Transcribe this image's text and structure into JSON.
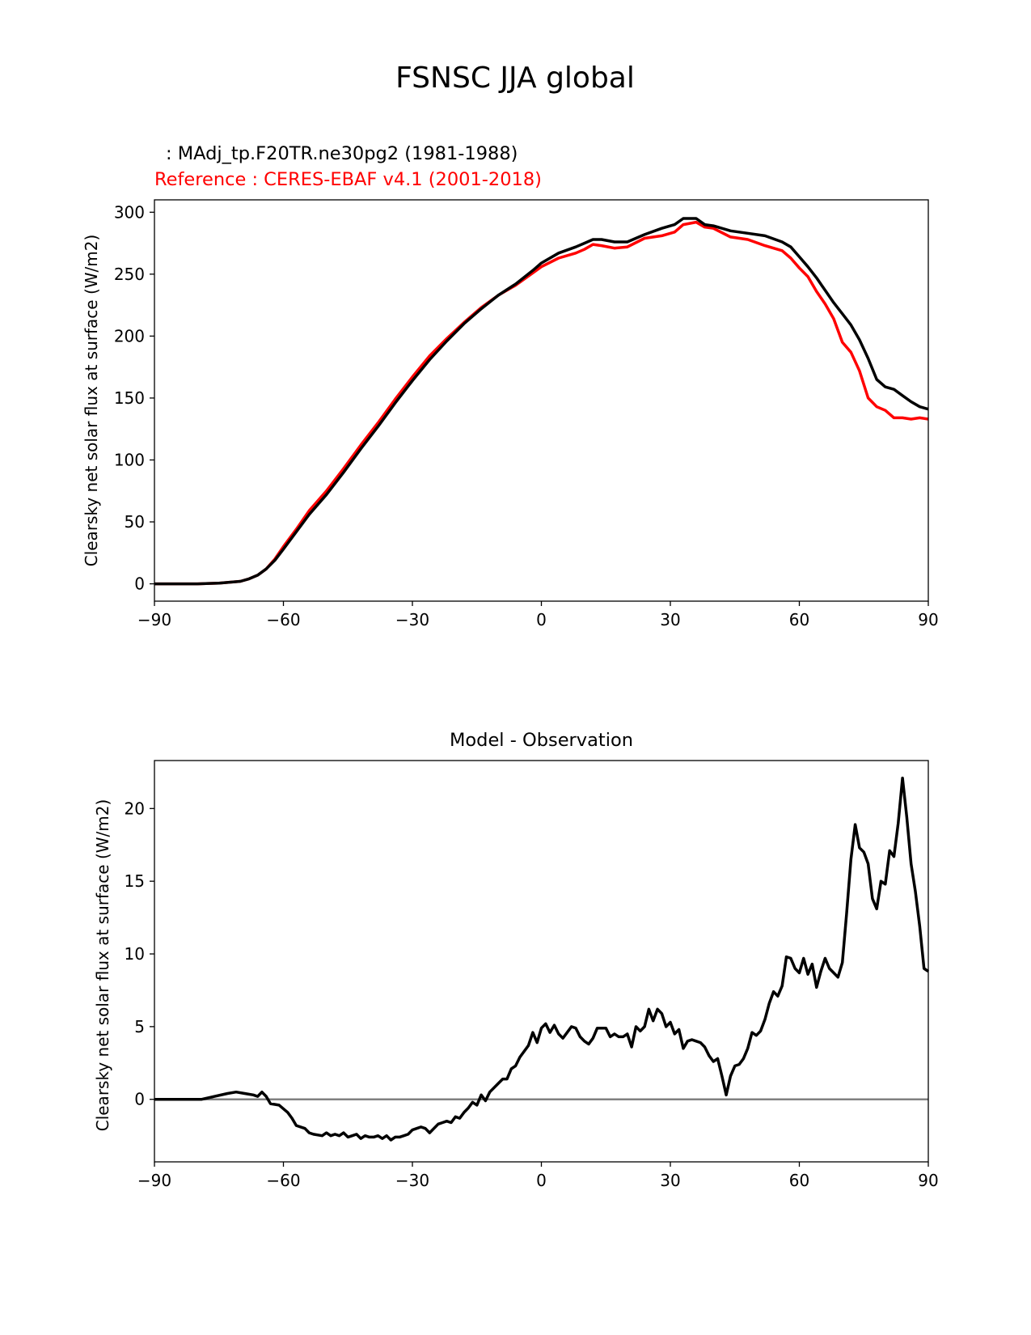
{
  "suptitle": "FSNSC JJA global",
  "chart_data": [
    {
      "type": "line",
      "title_test": ": MAdj_tp.F20TR.ne30pg2 (1981-1988)",
      "title_ref": "Reference : CERES-EBAF v4.1 (2001-2018)",
      "xlabel": "",
      "ylabel": "Clearsky net solar flux at surface (W/m2)",
      "xlim": [
        -90,
        90
      ],
      "ylim": [
        -14,
        310
      ],
      "xticks": [
        -90,
        -60,
        -30,
        0,
        30,
        60,
        90
      ],
      "xtick_labels": [
        "−90",
        "−60",
        "−30",
        "0",
        "30",
        "60",
        "90"
      ],
      "yticks": [
        0,
        50,
        100,
        150,
        200,
        250,
        300
      ],
      "ytick_labels": [
        "0",
        "50",
        "100",
        "150",
        "200",
        "250",
        "300"
      ],
      "grid": false,
      "colors": {
        "test": "#000000",
        "reference": "#ff0000"
      },
      "x": [
        -90,
        -85,
        -80,
        -75,
        -70,
        -68,
        -66,
        -64,
        -62,
        -60,
        -57,
        -54,
        -50,
        -46,
        -42,
        -38,
        -34,
        -30,
        -26,
        -22,
        -18,
        -14,
        -10,
        -6,
        -2,
        0,
        4,
        8,
        10,
        12,
        14,
        17,
        20,
        24,
        28,
        31,
        33,
        36,
        38,
        40,
        44,
        48,
        52,
        56,
        58,
        60,
        62,
        64,
        66,
        68,
        70,
        72,
        74,
        76,
        78,
        80,
        82,
        84,
        86,
        88,
        90
      ],
      "series": [
        {
          "key": "test",
          "values": [
            0,
            0,
            0,
            0.5,
            2,
            4,
            7,
            12,
            19,
            28,
            42,
            56,
            72,
            90,
            109,
            127,
            146,
            164,
            181,
            196,
            210,
            222,
            233,
            242,
            253,
            259,
            267,
            272,
            275,
            278,
            278,
            276,
            276,
            282,
            287,
            290,
            295,
            295,
            290,
            289,
            285,
            283,
            281,
            276,
            272,
            264,
            256,
            247,
            237,
            227,
            218,
            209,
            197,
            182,
            165,
            159,
            157,
            152,
            147,
            143,
            141
          ]
        },
        {
          "key": "reference",
          "values": [
            0,
            0,
            0,
            0.5,
            2,
            4,
            7,
            12,
            20,
            30,
            44,
            59,
            75,
            93,
            112,
            130,
            149,
            167,
            184,
            198,
            211,
            223,
            233,
            241,
            251,
            256,
            263,
            267,
            270,
            274,
            273,
            271,
            272,
            279,
            281,
            284,
            290,
            292,
            288,
            287,
            280,
            278,
            273,
            269,
            263,
            255,
            248,
            236,
            226,
            214,
            195,
            187,
            172,
            150,
            143,
            140,
            134,
            134,
            133,
            134,
            133
          ]
        }
      ]
    },
    {
      "type": "line",
      "title": "Model - Observation",
      "xlabel": "",
      "ylabel": "Clearsky net solar flux at surface (W/m2)",
      "xlim": [
        -90,
        90
      ],
      "ylim": [
        -4.3,
        23.3
      ],
      "xticks": [
        -90,
        -60,
        -30,
        0,
        30,
        60,
        90
      ],
      "xtick_labels": [
        "−90",
        "−60",
        "−30",
        "0",
        "30",
        "60",
        "90"
      ],
      "yticks": [
        0,
        5,
        10,
        15,
        20
      ],
      "ytick_labels": [
        "0",
        "5",
        "10",
        "15",
        "20"
      ],
      "grid": false,
      "zero_line": {
        "y": 0,
        "color": "#808080"
      },
      "colors": {
        "diff": "#000000"
      },
      "x": [
        -90,
        -79,
        -76,
        -73,
        -71,
        -69,
        -67,
        -66,
        -65,
        -64,
        -63,
        -61,
        -59,
        -58,
        -57,
        -55,
        -54,
        -53,
        -51,
        -50,
        -49,
        -48,
        -47,
        -46,
        -45,
        -44,
        -43,
        -42,
        -41,
        -40,
        -39,
        -38,
        -37,
        -36,
        -35,
        -34,
        -33,
        -32,
        -31,
        -30,
        -29,
        -28,
        -27,
        -26,
        -24,
        -23,
        -22,
        -21,
        -20,
        -19,
        -18,
        -17,
        -16,
        -15,
        -14,
        -13,
        -12,
        -10,
        -9,
        -8,
        -7,
        -6,
        -5,
        -3,
        -2,
        -1,
        0,
        1,
        2,
        3,
        4,
        5,
        6,
        7,
        8,
        9,
        10,
        11,
        12,
        13,
        14,
        15,
        16,
        17,
        18,
        19,
        20,
        21,
        22,
        23,
        24,
        25,
        26,
        27,
        28,
        29,
        30,
        31,
        32,
        33,
        34,
        35,
        36,
        37,
        38,
        39,
        40,
        41,
        42,
        43,
        44,
        45,
        46,
        47,
        48,
        49,
        50,
        51,
        52,
        53,
        54,
        55,
        56,
        57,
        58,
        59,
        60,
        61,
        62,
        63,
        64,
        65,
        66,
        67,
        68,
        69,
        70,
        71,
        72,
        73,
        74,
        75,
        76,
        77,
        78,
        79,
        80,
        81,
        82,
        83,
        84,
        85,
        86,
        87,
        88,
        89,
        90
      ],
      "series": [
        {
          "key": "diff",
          "values": [
            0,
            0,
            0.2,
            0.4,
            0.5,
            0.4,
            0.3,
            0.2,
            0.5,
            0.2,
            -0.3,
            -0.4,
            -0.9,
            -1.3,
            -1.8,
            -2.0,
            -2.3,
            -2.4,
            -2.5,
            -2.3,
            -2.5,
            -2.4,
            -2.5,
            -2.3,
            -2.6,
            -2.5,
            -2.4,
            -2.7,
            -2.5,
            -2.6,
            -2.6,
            -2.5,
            -2.7,
            -2.5,
            -2.8,
            -2.6,
            -2.6,
            -2.5,
            -2.4,
            -2.1,
            -2.0,
            -1.9,
            -2.0,
            -2.3,
            -1.7,
            -1.6,
            -1.5,
            -1.6,
            -1.2,
            -1.3,
            -0.9,
            -0.6,
            -0.2,
            -0.4,
            0.3,
            -0.1,
            0.5,
            1.1,
            1.4,
            1.4,
            2.1,
            2.3,
            2.9,
            3.7,
            4.6,
            3.9,
            4.9,
            5.2,
            4.6,
            5.1,
            4.5,
            4.2,
            4.6,
            5.0,
            4.9,
            4.3,
            4.0,
            3.8,
            4.2,
            4.9,
            4.9,
            4.9,
            4.3,
            4.5,
            4.3,
            4.3,
            4.5,
            3.6,
            5.0,
            4.7,
            5.0,
            6.2,
            5.4,
            6.2,
            5.9,
            5.0,
            5.3,
            4.5,
            4.8,
            3.5,
            4.0,
            4.1,
            4.0,
            3.9,
            3.6,
            3.0,
            2.6,
            2.8,
            1.6,
            0.3,
            1.6,
            2.3,
            2.4,
            2.8,
            3.5,
            4.6,
            4.4,
            4.7,
            5.5,
            6.6,
            7.4,
            7.1,
            7.8,
            9.8,
            9.7,
            9.0,
            8.7,
            9.7,
            8.6,
            9.3,
            7.7,
            8.8,
            9.7,
            9.0,
            8.7,
            8.4,
            9.4,
            12.8,
            16.5,
            18.9,
            17.3,
            17.0,
            16.2,
            13.8,
            13.1,
            15.0,
            14.8,
            17.1,
            16.7,
            19.0,
            22.1,
            19.4,
            16.2,
            14.3,
            11.9,
            9.0,
            8.8
          ]
        }
      ]
    }
  ]
}
